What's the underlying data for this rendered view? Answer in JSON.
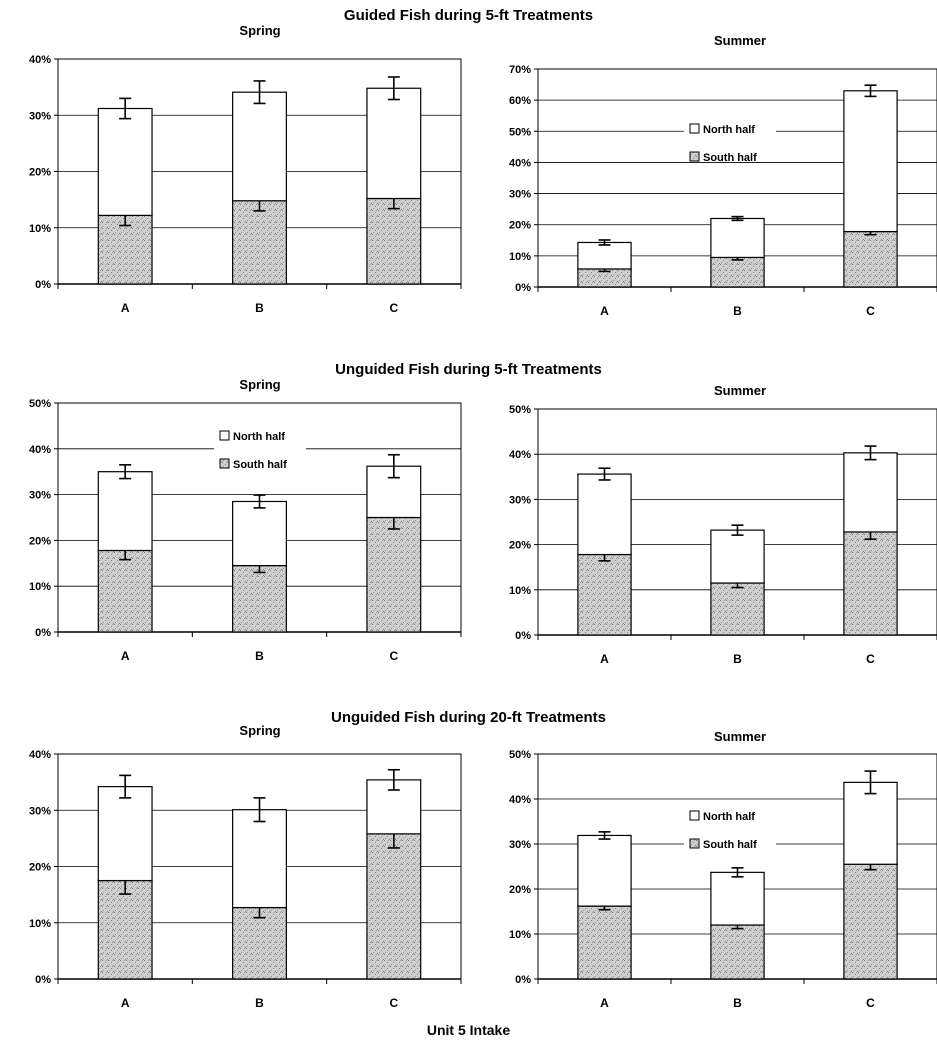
{
  "figure": {
    "caption": "Unit 5 Intake",
    "legend_labels": {
      "north": "North half",
      "south": "South half"
    },
    "colors": {
      "north": "#ffffff",
      "south": "#c8c8c8",
      "axis": "#000000",
      "grid": "#000000"
    }
  },
  "sections": [
    {
      "title": "Guided Fish during 5-ft Treatments"
    },
    {
      "title": "Unguided Fish during 5-ft Treatments"
    },
    {
      "title": "Unguided Fish during 20-ft Treatments"
    }
  ],
  "chart_data": [
    {
      "type": "bar",
      "stacked": true,
      "section": 0,
      "title": "Spring",
      "categories": [
        "A",
        "B",
        "C"
      ],
      "yticks": [
        "0%",
        "10%",
        "20%",
        "30%",
        "40%"
      ],
      "ylim": [
        0,
        40
      ],
      "series": [
        {
          "name": "South half",
          "values": [
            12.2,
            14.8,
            15.2
          ],
          "error": [
            1.8,
            1.8,
            1.8
          ]
        },
        {
          "name": "North half",
          "values": [
            19.0,
            19.3,
            19.6
          ],
          "error": [
            1.8,
            2.0,
            2.0
          ]
        }
      ],
      "legend": false,
      "grid": true
    },
    {
      "type": "bar",
      "stacked": true,
      "section": 0,
      "title": "Summer",
      "categories": [
        "A",
        "B",
        "C"
      ],
      "yticks": [
        "0%",
        "10%",
        "20%",
        "30%",
        "40%",
        "50%",
        "60%",
        "70%"
      ],
      "ylim": [
        0,
        70
      ],
      "series": [
        {
          "name": "South half",
          "values": [
            5.8,
            9.5,
            17.8
          ],
          "error": [
            0.8,
            0.8,
            1.0
          ]
        },
        {
          "name": "North half",
          "values": [
            8.5,
            12.5,
            45.2
          ],
          "error": [
            0.8,
            0.6,
            1.8
          ]
        }
      ],
      "legend": "upper-center",
      "grid": true
    },
    {
      "type": "bar",
      "stacked": true,
      "section": 1,
      "title": "Spring",
      "categories": [
        "A",
        "B",
        "C"
      ],
      "yticks": [
        "0%",
        "10%",
        "20%",
        "30%",
        "40%",
        "50%"
      ],
      "ylim": [
        0,
        50
      ],
      "series": [
        {
          "name": "South half",
          "values": [
            17.8,
            14.5,
            25.0
          ],
          "error": [
            2.0,
            1.5,
            2.5
          ]
        },
        {
          "name": "North half",
          "values": [
            17.2,
            14.0,
            11.2
          ],
          "error": [
            1.5,
            1.4,
            2.5
          ]
        }
      ],
      "legend": "upper-center",
      "grid": true
    },
    {
      "type": "bar",
      "stacked": true,
      "section": 1,
      "title": "Summer",
      "categories": [
        "A",
        "B",
        "C"
      ],
      "yticks": [
        "0%",
        "10%",
        "20%",
        "30%",
        "40%",
        "50%"
      ],
      "ylim": [
        0,
        50
      ],
      "series": [
        {
          "name": "South half",
          "values": [
            17.8,
            11.5,
            22.8
          ],
          "error": [
            1.4,
            1.0,
            1.6
          ]
        },
        {
          "name": "North half",
          "values": [
            17.8,
            11.7,
            17.5
          ],
          "error": [
            1.3,
            1.1,
            1.5
          ]
        }
      ],
      "legend": false,
      "grid": true
    },
    {
      "type": "bar",
      "stacked": true,
      "section": 2,
      "title": "Spring",
      "categories": [
        "A",
        "B",
        "C"
      ],
      "yticks": [
        "0%",
        "10%",
        "20%",
        "30%",
        "40%"
      ],
      "ylim": [
        0,
        40
      ],
      "series": [
        {
          "name": "South half",
          "values": [
            17.5,
            12.7,
            25.8
          ],
          "error": [
            2.4,
            1.8,
            2.5
          ]
        },
        {
          "name": "North half",
          "values": [
            16.7,
            17.4,
            9.6
          ],
          "error": [
            2.0,
            2.1,
            1.8
          ]
        }
      ],
      "legend": false,
      "grid": true
    },
    {
      "type": "bar",
      "stacked": true,
      "section": 2,
      "title": "Summer",
      "categories": [
        "A",
        "B",
        "C"
      ],
      "yticks": [
        "0%",
        "10%",
        "20%",
        "30%",
        "40%",
        "50%"
      ],
      "ylim": [
        0,
        50
      ],
      "series": [
        {
          "name": "South half",
          "values": [
            16.2,
            12.0,
            25.5
          ],
          "error": [
            0.8,
            0.8,
            1.2
          ]
        },
        {
          "name": "North half",
          "values": [
            15.7,
            11.7,
            18.2
          ],
          "error": [
            0.8,
            1.0,
            2.5
          ]
        }
      ],
      "legend": "upper-center",
      "grid": true
    }
  ]
}
